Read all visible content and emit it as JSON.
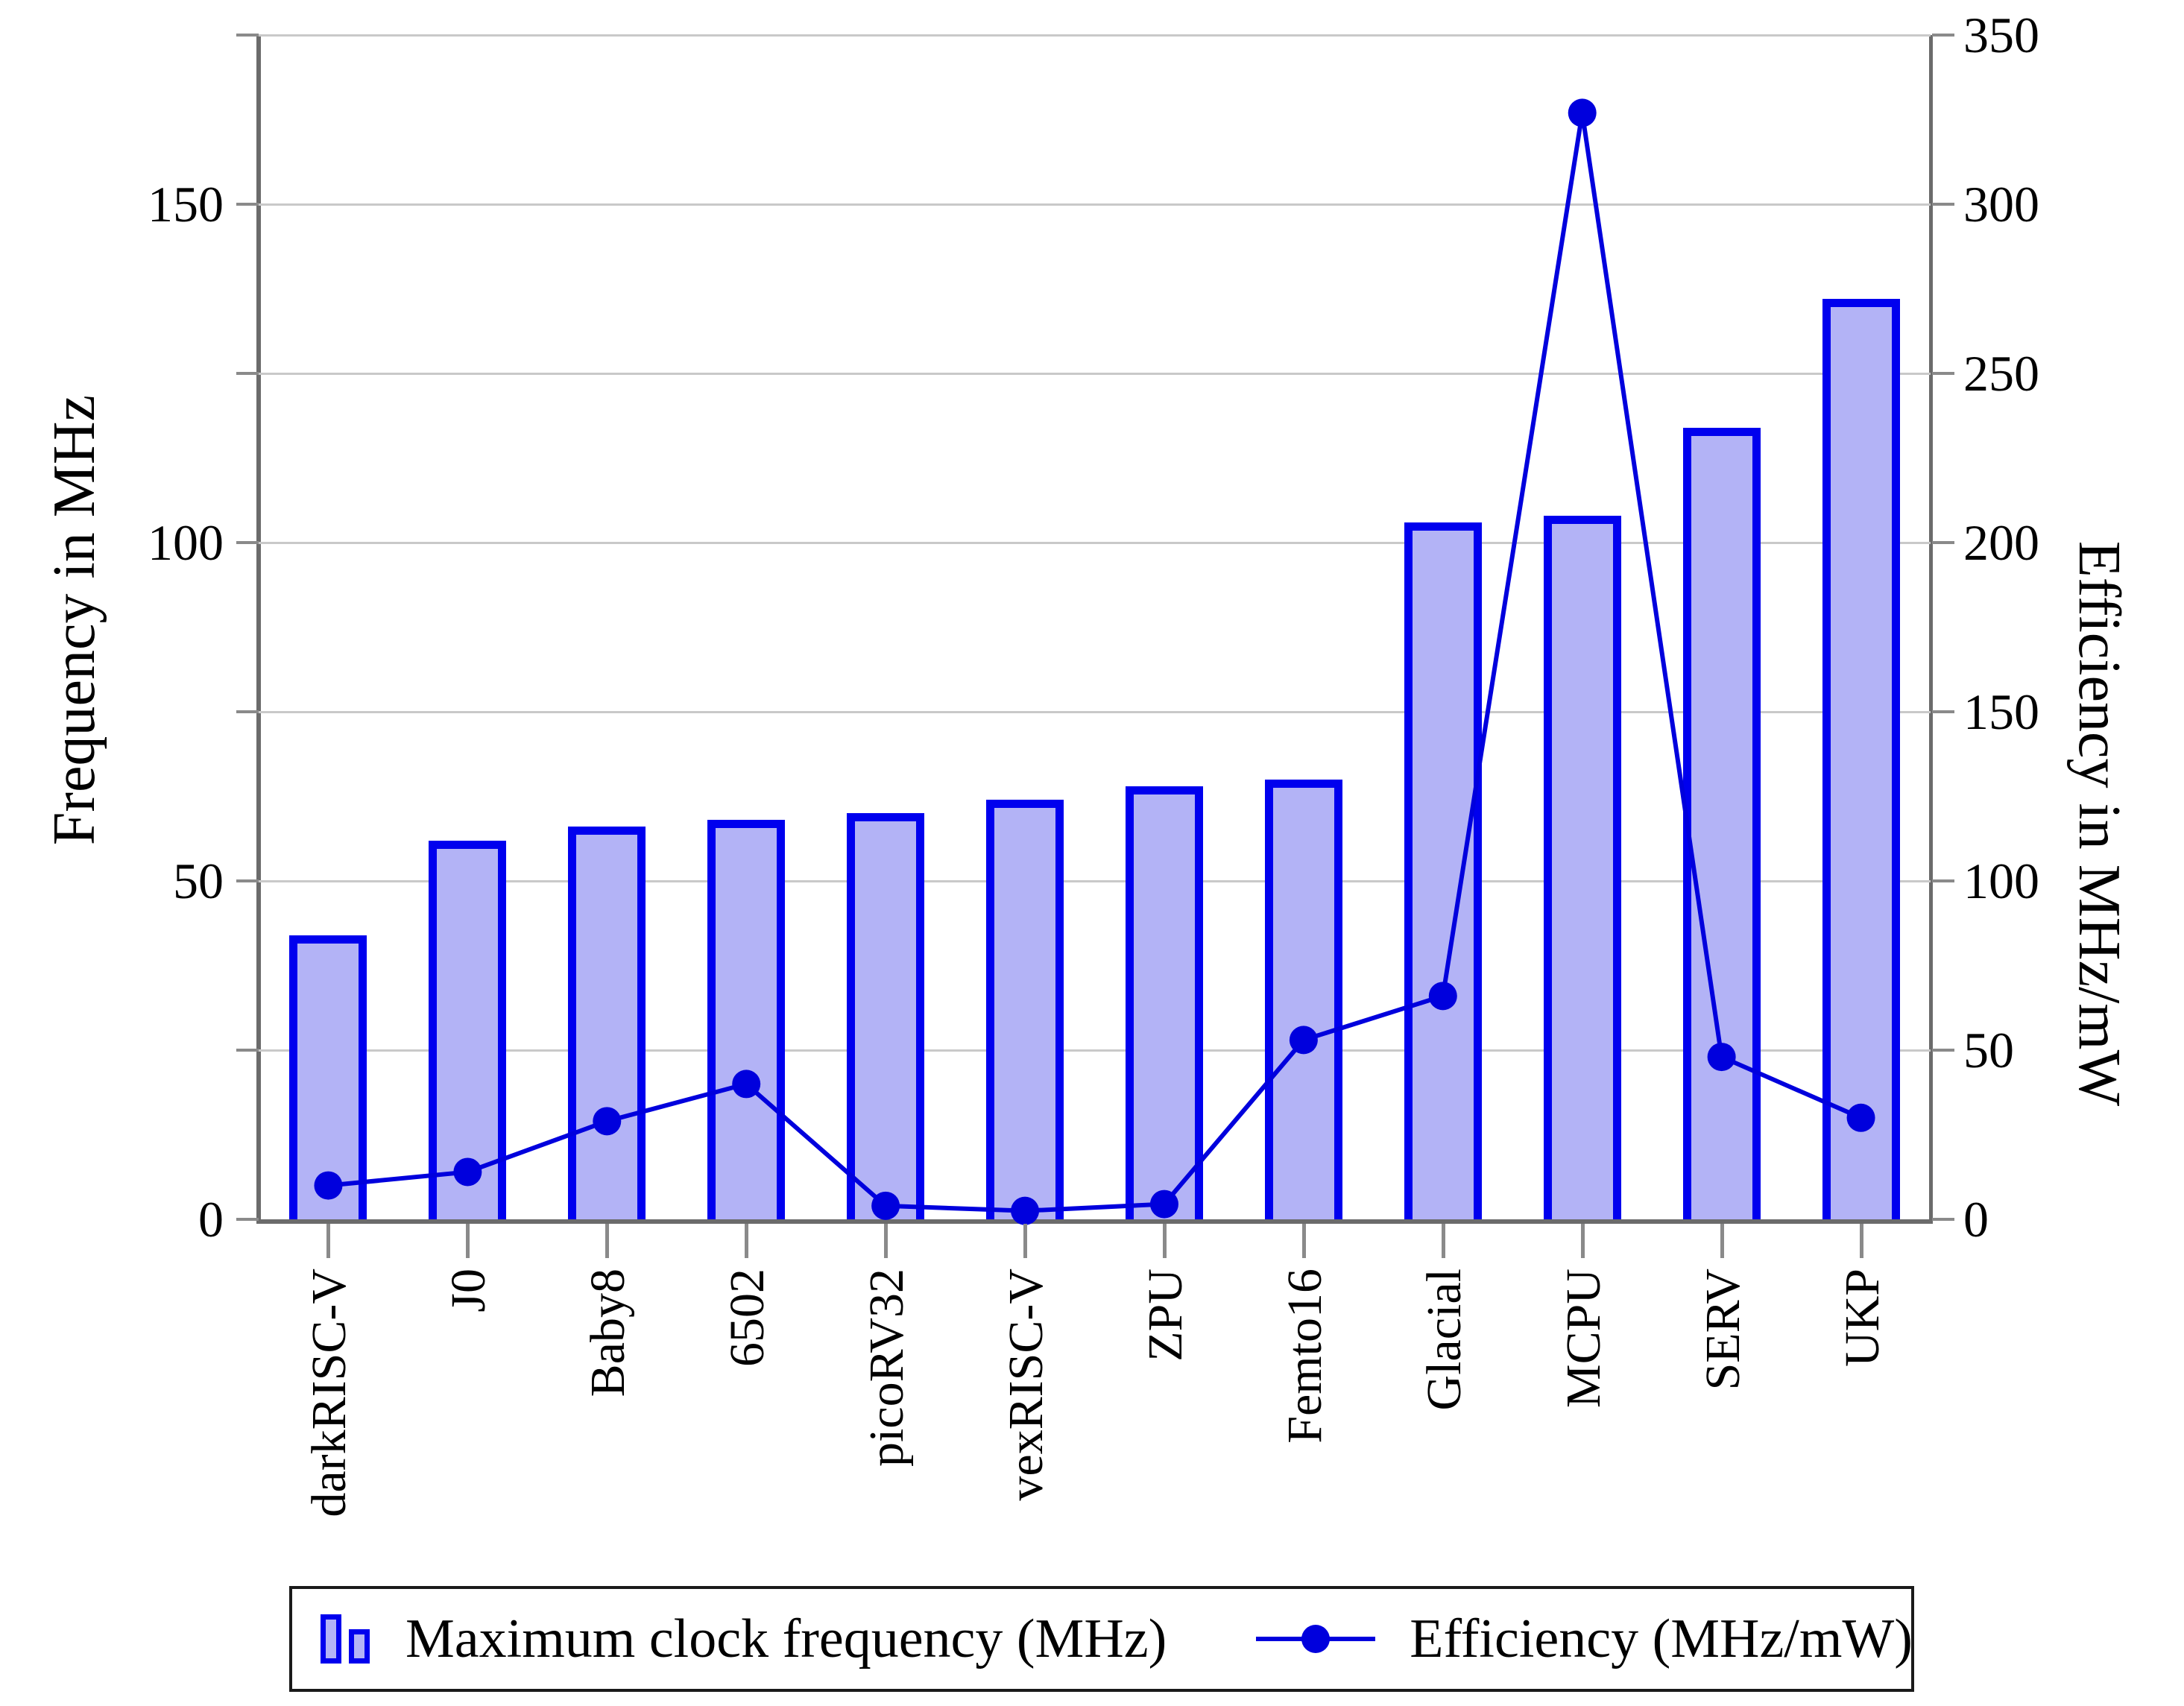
{
  "chart_data": {
    "type": "bar",
    "title": "",
    "categories": [
      "darkRISC-V",
      "J0",
      "Baby8",
      "6502",
      "picoRV32",
      "vexRISC-V",
      "ZPU",
      "Femto16",
      "Glacial",
      "MCPU",
      "SERV",
      "UKP"
    ],
    "series": [
      {
        "name": "Maximum clock frequency (MHz)",
        "type": "bar",
        "axis": "left",
        "values": [
          42,
          56,
          58,
          59,
          60,
          62,
          64,
          65,
          103,
          104,
          117,
          136
        ]
      },
      {
        "name": "Efficiency (MHz/mW)",
        "type": "line",
        "axis": "right",
        "values": [
          10,
          14,
          29,
          40,
          4,
          2.5,
          4.5,
          53,
          66,
          327,
          48,
          30
        ]
      }
    ],
    "xlabel": "",
    "ylabel_left": "Frequency in MHz",
    "ylabel_right": "Efficiency in MHz/mW",
    "yticks_left": [
      0,
      50,
      100,
      150
    ],
    "yticks_right": [
      0,
      50,
      100,
      150,
      200,
      250,
      300,
      350
    ],
    "ylim_left": [
      0,
      175
    ],
    "ylim_right": [
      0,
      350
    ],
    "grid": true,
    "gridline_step_right_units": 50,
    "legend_position": "bottom"
  },
  "legend": {
    "items": [
      {
        "label": "Maximum clock frequency (MHz)",
        "marker": "bar-icon"
      },
      {
        "label": "Efficiency (MHz/mW)",
        "marker": "line-dot-icon"
      }
    ]
  },
  "colors": {
    "bar_fill": "#b3b3f6",
    "bar_border": "#0000ee",
    "line": "#0000dd",
    "dot": "#0000dd",
    "grid": "#c9c9c9",
    "axis": "#6b6b6b",
    "tick": "#8a8a8a",
    "text": "#000000",
    "legend_border": "#1a1a1a",
    "background": "#ffffff"
  }
}
